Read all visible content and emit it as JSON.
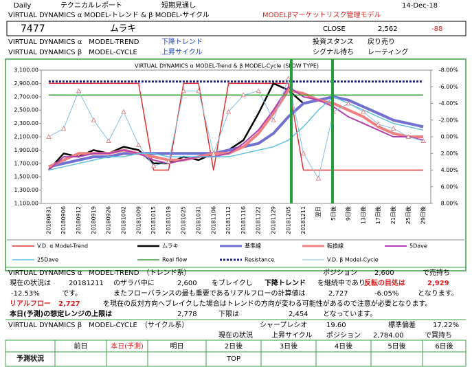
{
  "header": {
    "frequency": "Daily",
    "report_type": "テクニカルレポート",
    "outlook": "短期見通し",
    "date": "14-Dec-18",
    "model_title": "VIRTUAL DYNAMICS α MODEL-トレンド & β MODEL-サイクル",
    "risk_model": "MODELβマーケットリスク管理モデル"
  },
  "stock": {
    "code": "7477",
    "name": "ムラキ",
    "close_label": "CLOSE",
    "close": "2,562",
    "change": "-88"
  },
  "status": [
    {
      "model": "VIRTUAL DYNAMICS α　MODEL-TREND",
      "state": "下降トレンド",
      "label": "投資スタンス",
      "value": "戻り売り"
    },
    {
      "model": "VIRTUAL DYNAMICS β　MODEL-CYCLE",
      "state": "上昇サイクル",
      "label": "シグナル待ち",
      "value": "レーティング"
    }
  ],
  "chart_data": {
    "type": "line",
    "title": "VIRTUAL DYNAMICS α MODEL-Trend & β MODEL-Cycle (SLOW TYPE)",
    "categories": [
      "20180831",
      "20180906",
      "20180912",
      "20180919",
      "20180926",
      "20181002",
      "20181009",
      "20181015",
      "20181019",
      "20181025",
      "20181031",
      "20181106",
      "20181112",
      "20181116",
      "20181122",
      "20181129",
      "20181205",
      "20181211",
      "翌日",
      "5日後",
      "9日後",
      "13日後",
      "17日後",
      "21日後",
      "25日後",
      "29日後"
    ],
    "ylim": [
      1100,
      3100
    ],
    "yticks": [
      {
        "value": 1100,
        "label": "1,100.00"
      },
      {
        "value": 1300,
        "label": "1,300.00"
      },
      {
        "value": 1500,
        "label": "1,500.00"
      },
      {
        "value": 1700,
        "label": "1,700.00"
      },
      {
        "value": 1900,
        "label": "1,900.00"
      },
      {
        "value": 2100,
        "label": "2,100.00"
      },
      {
        "value": 2300,
        "label": "2,300.00"
      },
      {
        "value": 2500,
        "label": "2,500.00"
      },
      {
        "value": 2700,
        "label": "2,700.00"
      },
      {
        "value": 2900,
        "label": "2,900.00"
      },
      {
        "value": 3100,
        "label": "3,100.00"
      }
    ],
    "y2lim": [
      8,
      -8
    ],
    "y2ticks": [
      {
        "value": -8,
        "label": "-8.00%"
      },
      {
        "value": -6,
        "label": "-6.00%"
      },
      {
        "value": -4,
        "label": "-4.00%"
      },
      {
        "value": -2,
        "label": "-2.00%"
      },
      {
        "value": 0,
        "label": "0.00%"
      },
      {
        "value": 2,
        "label": "2.00%"
      },
      {
        "value": 4,
        "label": "4.00%"
      },
      {
        "value": 6,
        "label": "6.00%"
      },
      {
        "value": 8,
        "label": "8.00%"
      }
    ],
    "grid": false,
    "series": [
      {
        "name": "V.D. α Model-Trend",
        "color": "#e03030",
        "values": [
          2900,
          2900,
          2900,
          2900,
          2900,
          2900,
          2900,
          1600,
          1600,
          2900,
          2900,
          1600,
          2900,
          2900,
          2900,
          2900,
          2900,
          1600,
          1600,
          1600,
          1600,
          1600,
          1600,
          1600,
          1600,
          1600
        ]
      },
      {
        "name": "ムラキ",
        "color": "#000000",
        "values": [
          1600,
          1850,
          1800,
          1900,
          1850,
          1950,
          1900,
          1700,
          1700,
          1800,
          1750,
          1850,
          1900,
          2050,
          2450,
          2900,
          2800,
          2600,
          null,
          null,
          null,
          null,
          null,
          null,
          null,
          null
        ]
      },
      {
        "name": "基準線",
        "color": "#7070d0",
        "values": [
          1650,
          1700,
          1750,
          1800,
          1800,
          1850,
          1850,
          1850,
          1850,
          1850,
          1850,
          1850,
          1900,
          1950,
          2000,
          2150,
          2400,
          2600,
          2650,
          2700,
          2650,
          2550,
          2450,
          2350,
          2300,
          2250
        ]
      },
      {
        "name": "転換線",
        "color": "#f08080",
        "values": [
          1650,
          1750,
          1850,
          1850,
          1850,
          1900,
          1850,
          1800,
          1750,
          1750,
          1800,
          1850,
          1850,
          1950,
          2150,
          2450,
          2800,
          2750,
          2650,
          2600,
          2500,
          2400,
          2250,
          2150,
          2100,
          2100
        ]
      },
      {
        "name": "5Dave",
        "color": "#b040b0",
        "values": [
          1600,
          1800,
          1800,
          1850,
          1850,
          1900,
          1850,
          1750,
          1700,
          1750,
          1800,
          1800,
          1850,
          2000,
          2200,
          2500,
          2850,
          2700,
          2650,
          2550,
          2400,
          2300,
          2200,
          2100,
          2100,
          2050
        ]
      },
      {
        "name": "25Dave",
        "color": "#60c0e0",
        "values": [
          1600,
          1650,
          1700,
          1750,
          1800,
          1800,
          1850,
          1850,
          1800,
          1800,
          1800,
          1800,
          1800,
          1850,
          1900,
          1950,
          2050,
          2250,
          2500,
          2700,
          2600,
          2500,
          2400,
          2300,
          2250,
          2200
        ]
      },
      {
        "name": "Real flow",
        "color": "#30a030",
        "values": [
          2727,
          2727,
          2727,
          2727,
          2727,
          2727,
          2727,
          2727,
          2727,
          2727,
          2727,
          2727,
          2727,
          2727,
          2727,
          2727,
          2727,
          2727,
          2727,
          2727,
          2727,
          2727,
          2727,
          2727,
          2727,
          2727
        ]
      },
      {
        "name": "Resistance",
        "color": "#202080",
        "dashed": true,
        "values": [
          2929,
          2929,
          2929,
          2929,
          2929,
          2929,
          2929,
          2929,
          2929,
          2929,
          2929,
          2929,
          2929,
          2929,
          2929,
          2929,
          2929,
          2929,
          2929,
          2929,
          2929,
          2929,
          2929,
          2929,
          2929,
          2929
        ]
      },
      {
        "name": "V.D. β Model-Cycle",
        "color": "#80c0e8",
        "axis": "y2",
        "marker": "triangle",
        "values": [
          0,
          -1,
          -5.5,
          -2,
          0.5,
          -3,
          1,
          3.5,
          3,
          -5.5,
          -5.5,
          2,
          -3,
          -5,
          -5.5,
          -2,
          -7,
          2,
          5,
          -3,
          -4,
          -3,
          -1.5,
          -1,
          0,
          0.5
        ]
      }
    ]
  },
  "trend": {
    "heading": "VIRTUAL DYNAMICS α　MODEL-TREND　（トレンド系）",
    "position_label": "ポジション",
    "position": "2,600",
    "position_side": "で売持ち",
    "lines": [
      [
        "現在の状況は",
        "20181211",
        "のザラバ中に",
        "2,600",
        "をブレイクし",
        "下降トレンド",
        "を継続中であり",
        "反転の目処は",
        "2,929"
      ],
      [
        "-12.53%",
        "です。",
        "またフローバランスの最も重要であるリアルフローの計算値は",
        "2,727",
        "-6.05%",
        "となります。"
      ],
      [
        "リアルフロー",
        "2,727",
        "を現在の反対方向へブレイクした場合はトレンドの方向が変わる可能性があるので注意が必要となります。"
      ],
      [
        "本日(予測)の想定レンジの上限は",
        "2,778",
        "下限は",
        "2,454",
        "となっています。"
      ]
    ]
  },
  "cycle": {
    "heading": "VIRTUAL DYNAMICS β　MODEL-CYCLE　（サイクル系）",
    "sharpe_label": "シャープレシオ",
    "sharpe": "19.60",
    "stdev_label": "標準偏差",
    "stdev": "17.22%",
    "state_label": "現在の状況",
    "state": "上昇サイクル",
    "position_label": "ポジション",
    "position": "2,784.00",
    "position_side": "で買持ち"
  },
  "forecast_table": {
    "headers": [
      "前日",
      "本日(予測)",
      "明日",
      "2日後",
      "3日後",
      "4日後",
      "5日後",
      "6日後"
    ],
    "row_label": "予測状況",
    "cells": [
      null,
      null,
      null,
      "TOP",
      null,
      null,
      null,
      null
    ]
  }
}
